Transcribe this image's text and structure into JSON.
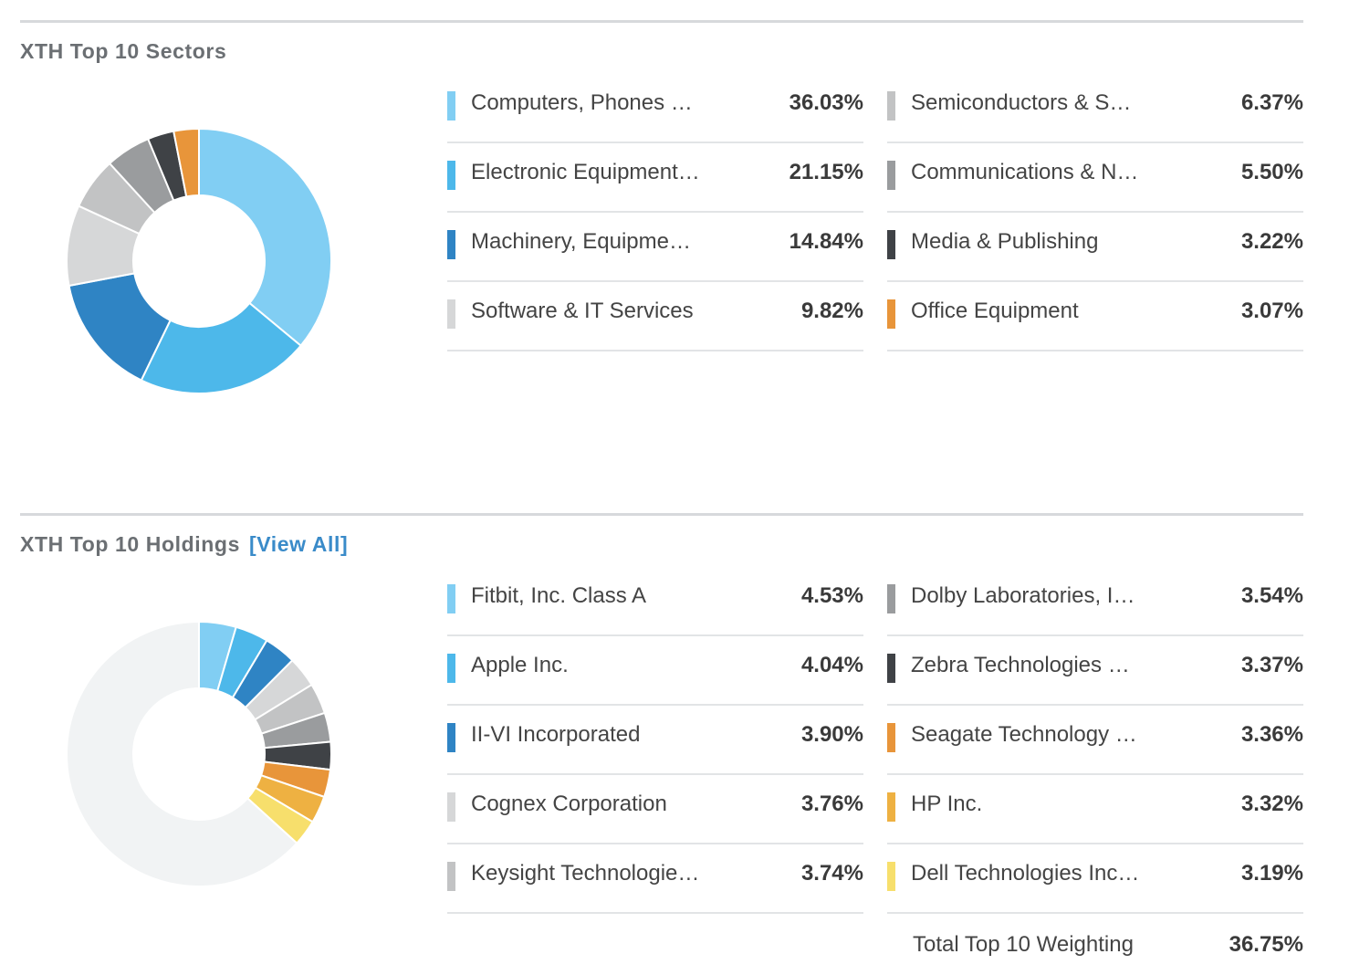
{
  "sectors": {
    "title": "XTH Top 10 Sectors",
    "items": [
      {
        "label": "Computers, Phones …",
        "value": "36.03%",
        "color": "#81cef3"
      },
      {
        "label": "Electronic Equipment…",
        "value": "21.15%",
        "color": "#4db8ea"
      },
      {
        "label": "Machinery, Equipme…",
        "value": "14.84%",
        "color": "#2f84c4"
      },
      {
        "label": "Software & IT Services",
        "value": "9.82%",
        "color": "#d6d7d8"
      },
      {
        "label": "Semiconductors & S…",
        "value": "6.37%",
        "color": "#c2c3c4"
      },
      {
        "label": "Communications & N…",
        "value": "5.50%",
        "color": "#9a9c9e"
      },
      {
        "label": "Media & Publishing",
        "value": "3.22%",
        "color": "#3f4246"
      },
      {
        "label": "Office Equipment",
        "value": "3.07%",
        "color": "#e8953a"
      }
    ]
  },
  "holdings": {
    "title": "XTH Top 10 Holdings",
    "view_all": "[View All]",
    "items": [
      {
        "label": "Fitbit, Inc. Class A",
        "value": "4.53%",
        "color": "#81cef3"
      },
      {
        "label": "Apple Inc.",
        "value": "4.04%",
        "color": "#4db8ea"
      },
      {
        "label": "II-VI Incorporated",
        "value": "3.90%",
        "color": "#2f84c4"
      },
      {
        "label": "Cognex Corporation",
        "value": "3.76%",
        "color": "#d6d7d8"
      },
      {
        "label": "Keysight Technologie…",
        "value": "3.74%",
        "color": "#c2c3c4"
      },
      {
        "label": "Dolby Laboratories, I…",
        "value": "3.54%",
        "color": "#9a9c9e"
      },
      {
        "label": "Zebra Technologies …",
        "value": "3.37%",
        "color": "#3f4246"
      },
      {
        "label": "Seagate Technology …",
        "value": "3.36%",
        "color": "#e8953a"
      },
      {
        "label": "HP Inc.",
        "value": "3.32%",
        "color": "#eeb142"
      },
      {
        "label": "Dell Technologies Inc…",
        "value": "3.19%",
        "color": "#f7df6c"
      }
    ],
    "total_label": "Total Top 10 Weighting",
    "total_value": "36.75%",
    "remainder_color": "#f1f3f4"
  },
  "chart_data": [
    {
      "type": "pie",
      "categories": [
        "Computers, Phones …",
        "Electronic Equipment…",
        "Machinery, Equipme…",
        "Software & IT Services",
        "Semiconductors & S…",
        "Communications & N…",
        "Media & Publishing",
        "Office Equipment"
      ],
      "values": [
        36.03,
        21.15,
        14.84,
        9.82,
        6.37,
        5.5,
        3.22,
        3.07
      ],
      "title": "XTH Top 10 Sectors"
    },
    {
      "type": "pie",
      "categories": [
        "Fitbit, Inc. Class A",
        "Apple Inc.",
        "II-VI Incorporated",
        "Cognex Corporation",
        "Keysight Technologie…",
        "Dolby Laboratories, I…",
        "Zebra Technologies …",
        "Seagate Technology …",
        "HP Inc.",
        "Dell Technologies Inc…"
      ],
      "values": [
        4.53,
        4.04,
        3.9,
        3.76,
        3.74,
        3.54,
        3.37,
        3.36,
        3.32,
        3.19
      ],
      "title": "XTH Top 10 Holdings"
    }
  ]
}
